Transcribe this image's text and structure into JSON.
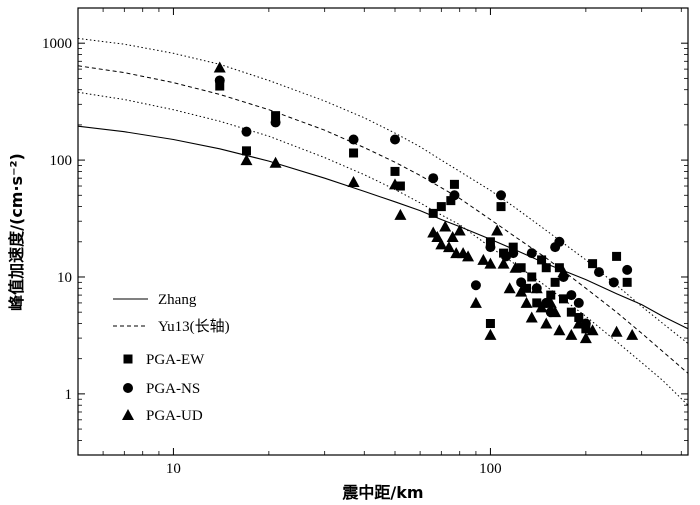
{
  "chart_data": {
    "type": "scatter",
    "xlabel": "震中距/km",
    "ylabel": "峰值加速度/(cm·s⁻²)",
    "xscale": "log",
    "yscale": "log",
    "xlim": [
      5,
      420
    ],
    "ylim": [
      0.3,
      2000
    ],
    "x_ticks": [
      {
        "v": 10,
        "label": "10"
      },
      {
        "v": 100,
        "label": "100"
      }
    ],
    "y_ticks": [
      {
        "v": 1,
        "label": "1"
      },
      {
        "v": 10,
        "label": "10"
      },
      {
        "v": 100,
        "label": "100"
      },
      {
        "v": 1000,
        "label": "1000"
      }
    ],
    "grid": false,
    "legend": {
      "position": "bottom-left",
      "entries": [
        {
          "label": "Zhang",
          "kind": "line",
          "style": "solid"
        },
        {
          "label": "Yu13(长轴)",
          "kind": "line",
          "style": "dashed"
        },
        {
          "label": "PGA-EW",
          "kind": "marker",
          "marker": "square"
        },
        {
          "label": "PGA-NS",
          "kind": "marker",
          "marker": "circle"
        },
        {
          "label": "PGA-UD",
          "kind": "marker",
          "marker": "triangle"
        }
      ]
    },
    "lines": [
      {
        "name": "Zhang",
        "style": "solid",
        "points": [
          [
            5,
            195
          ],
          [
            7,
            175
          ],
          [
            10,
            150
          ],
          [
            14,
            125
          ],
          [
            20,
            98
          ],
          [
            30,
            70
          ],
          [
            40,
            54
          ],
          [
            50,
            44
          ],
          [
            60,
            37
          ],
          [
            70,
            31
          ],
          [
            80,
            27
          ],
          [
            100,
            21
          ],
          [
            120,
            17
          ],
          [
            150,
            13
          ],
          [
            200,
            9.5
          ],
          [
            250,
            7.2
          ],
          [
            300,
            5.8
          ],
          [
            350,
            4.6
          ],
          [
            420,
            3.6
          ]
        ]
      },
      {
        "name": "Yu13(长轴)",
        "style": "dashed",
        "points": [
          [
            5,
            640
          ],
          [
            7,
            560
          ],
          [
            10,
            460
          ],
          [
            14,
            365
          ],
          [
            20,
            270
          ],
          [
            30,
            180
          ],
          [
            40,
            128
          ],
          [
            50,
            96
          ],
          [
            60,
            74
          ],
          [
            70,
            58
          ],
          [
            80,
            47
          ],
          [
            100,
            31
          ],
          [
            120,
            22
          ],
          [
            150,
            14.5
          ],
          [
            200,
            8
          ],
          [
            250,
            5
          ],
          [
            300,
            3.3
          ],
          [
            350,
            2.3
          ],
          [
            420,
            1.5
          ]
        ]
      },
      {
        "name": "upper-bound",
        "style": "dotted",
        "points": [
          [
            5,
            1100
          ],
          [
            7,
            980
          ],
          [
            10,
            820
          ],
          [
            14,
            660
          ],
          [
            20,
            480
          ],
          [
            30,
            320
          ],
          [
            40,
            230
          ],
          [
            50,
            170
          ],
          [
            60,
            130
          ],
          [
            70,
            100
          ],
          [
            80,
            80
          ],
          [
            100,
            55
          ],
          [
            120,
            39
          ],
          [
            150,
            25
          ],
          [
            200,
            14
          ],
          [
            250,
            8.5
          ],
          [
            300,
            5.6
          ],
          [
            350,
            4
          ],
          [
            420,
            2.7
          ]
        ]
      },
      {
        "name": "lower-bound",
        "style": "dotted",
        "points": [
          [
            5,
            380
          ],
          [
            7,
            330
          ],
          [
            10,
            270
          ],
          [
            14,
            215
          ],
          [
            20,
            160
          ],
          [
            30,
            105
          ],
          [
            40,
            75
          ],
          [
            50,
            56
          ],
          [
            60,
            43
          ],
          [
            70,
            34
          ],
          [
            80,
            28
          ],
          [
            100,
            18
          ],
          [
            120,
            12.8
          ],
          [
            150,
            8.3
          ],
          [
            200,
            4.6
          ],
          [
            250,
            2.8
          ],
          [
            300,
            1.85
          ],
          [
            350,
            1.3
          ],
          [
            420,
            0.8
          ]
        ]
      }
    ],
    "series": [
      {
        "name": "PGA-EW",
        "marker": "square",
        "points": [
          [
            14,
            430
          ],
          [
            17,
            120
          ],
          [
            21,
            240
          ],
          [
            37,
            115
          ],
          [
            50,
            80
          ],
          [
            52,
            60
          ],
          [
            66,
            35
          ],
          [
            70,
            40
          ],
          [
            75,
            45
          ],
          [
            77,
            62
          ],
          [
            100,
            20
          ],
          [
            100,
            4
          ],
          [
            108,
            40
          ],
          [
            110,
            16
          ],
          [
            118,
            18
          ],
          [
            125,
            12
          ],
          [
            130,
            8
          ],
          [
            135,
            10
          ],
          [
            140,
            6
          ],
          [
            145,
            14
          ],
          [
            150,
            12
          ],
          [
            155,
            7
          ],
          [
            160,
            9
          ],
          [
            165,
            12
          ],
          [
            170,
            6.5
          ],
          [
            180,
            5
          ],
          [
            190,
            4.5
          ],
          [
            200,
            3.6
          ],
          [
            210,
            13
          ],
          [
            250,
            15
          ],
          [
            270,
            9
          ]
        ]
      },
      {
        "name": "PGA-NS",
        "marker": "circle",
        "points": [
          [
            14,
            480
          ],
          [
            17,
            175
          ],
          [
            21,
            210
          ],
          [
            37,
            150
          ],
          [
            50,
            150
          ],
          [
            66,
            70
          ],
          [
            77,
            50
          ],
          [
            90,
            8.5
          ],
          [
            100,
            18
          ],
          [
            108,
            50
          ],
          [
            112,
            15
          ],
          [
            118,
            16
          ],
          [
            125,
            9
          ],
          [
            135,
            16
          ],
          [
            140,
            8
          ],
          [
            150,
            6
          ],
          [
            155,
            5
          ],
          [
            160,
            18
          ],
          [
            165,
            20
          ],
          [
            170,
            10
          ],
          [
            180,
            7
          ],
          [
            190,
            6
          ],
          [
            200,
            4
          ],
          [
            220,
            11
          ],
          [
            245,
            9
          ],
          [
            270,
            11.5
          ]
        ]
      },
      {
        "name": "PGA-UD",
        "marker": "triangle",
        "points": [
          [
            14,
            620
          ],
          [
            17,
            100
          ],
          [
            21,
            95
          ],
          [
            37,
            65
          ],
          [
            50,
            62
          ],
          [
            52,
            34
          ],
          [
            66,
            24
          ],
          [
            68,
            22
          ],
          [
            70,
            19
          ],
          [
            72,
            27
          ],
          [
            74,
            18
          ],
          [
            76,
            22
          ],
          [
            78,
            16
          ],
          [
            80,
            25
          ],
          [
            82,
            16
          ],
          [
            85,
            15
          ],
          [
            90,
            6
          ],
          [
            95,
            14
          ],
          [
            100,
            3.2
          ],
          [
            100,
            13
          ],
          [
            105,
            25
          ],
          [
            110,
            13
          ],
          [
            115,
            8
          ],
          [
            120,
            12
          ],
          [
            125,
            7.5
          ],
          [
            130,
            6
          ],
          [
            135,
            4.5
          ],
          [
            140,
            8
          ],
          [
            145,
            5.5
          ],
          [
            150,
            4
          ],
          [
            155,
            6
          ],
          [
            160,
            5
          ],
          [
            165,
            3.5
          ],
          [
            170,
            11
          ],
          [
            180,
            3.2
          ],
          [
            190,
            4
          ],
          [
            200,
            3
          ],
          [
            210,
            3.5
          ],
          [
            250,
            3.4
          ],
          [
            280,
            3.2
          ]
        ]
      }
    ]
  }
}
